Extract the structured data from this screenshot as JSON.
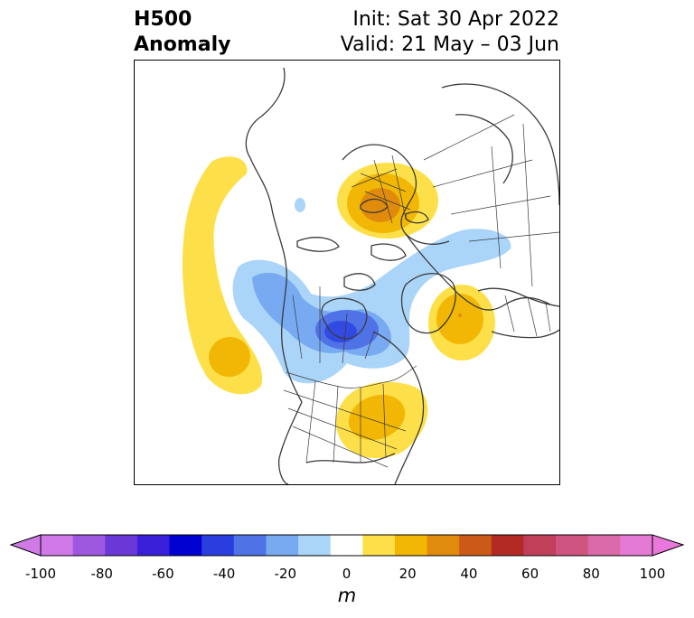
{
  "header": {
    "title_line1": "H500",
    "title_line2": "Anomaly",
    "init_text": "Init: Sat 30 Apr 2022",
    "valid_text": "Valid: 21 May – 03 Jun"
  },
  "colorbar": {
    "unit": "m",
    "extend": "both",
    "levels": [
      -100,
      -90,
      -80,
      -70,
      -60,
      -50,
      -40,
      -30,
      -20,
      -10,
      10,
      20,
      30,
      40,
      50,
      60,
      70,
      80,
      90,
      100
    ],
    "ticks": [
      "-100",
      "-80",
      "-60",
      "-40",
      "-20",
      "0",
      "20",
      "40",
      "60",
      "80",
      "100"
    ],
    "colors": [
      "#d07ae8",
      "#9e58e0",
      "#6b38d8",
      "#3a1fd8",
      "#0000d0",
      "#2a3ee0",
      "#4f72e6",
      "#77aaf0",
      "#aad4f8",
      "#ffffff",
      "#fde049",
      "#f2b705",
      "#e08b0b",
      "#cc5a17",
      "#b32a25",
      "#c0405a",
      "#cf5580",
      "#da6aaa",
      "#e57ad4"
    ],
    "neg_extend_color": "#d07ae8",
    "pos_extend_color": "#ea77dc"
  },
  "map": {
    "projection": "polar-stereographic",
    "region": "North America / Northern Hemisphere",
    "features": [
      "coastlines",
      "country borders",
      "US state borders",
      "Canadian province borders"
    ]
  }
}
